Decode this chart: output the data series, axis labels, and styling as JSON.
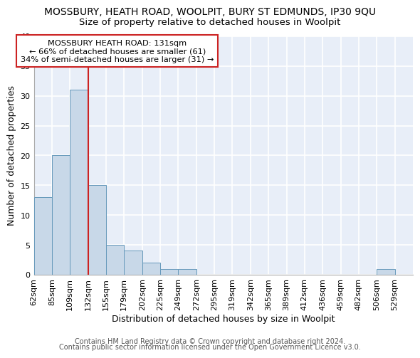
{
  "title_main": "MOSSBURY, HEATH ROAD, WOOLPIT, BURY ST EDMUNDS, IP30 9QU",
  "title_sub": "Size of property relative to detached houses in Woolpit",
  "xlabel": "Distribution of detached houses by size in Woolpit",
  "ylabel": "Number of detached properties",
  "footer_line1": "Contains HM Land Registry data © Crown copyright and database right 2024.",
  "footer_line2": "Contains public sector information licensed under the Open Government Licence v3.0.",
  "bin_labels": [
    "62sqm",
    "85sqm",
    "109sqm",
    "132sqm",
    "155sqm",
    "179sqm",
    "202sqm",
    "225sqm",
    "249sqm",
    "272sqm",
    "295sqm",
    "319sqm",
    "342sqm",
    "365sqm",
    "389sqm",
    "412sqm",
    "436sqm",
    "459sqm",
    "482sqm",
    "506sqm",
    "529sqm"
  ],
  "bar_values": [
    13,
    20,
    31,
    15,
    5,
    4,
    2,
    1,
    1,
    0,
    0,
    0,
    0,
    0,
    0,
    0,
    0,
    0,
    0,
    1,
    0
  ],
  "bar_color": "#c8d8e8",
  "bar_edge_color": "#6699bb",
  "vline_bin_index": 3,
  "annotation_line1": "MOSSBURY HEATH ROAD: 131sqm",
  "annotation_line2": "← 66% of detached houses are smaller (61)",
  "annotation_line3": "34% of semi-detached houses are larger (31) →",
  "vline_color": "#cc2222",
  "annotation_box_edgecolor": "#cc2222",
  "ylim": [
    0,
    40
  ],
  "yticks": [
    0,
    5,
    10,
    15,
    20,
    25,
    30,
    35,
    40
  ],
  "bg_color": "#e8eef8",
  "grid_color": "#ffffff",
  "title_main_fontsize": 10,
  "title_sub_fontsize": 9.5,
  "axis_label_fontsize": 9,
  "tick_fontsize": 8,
  "footer_fontsize": 7
}
